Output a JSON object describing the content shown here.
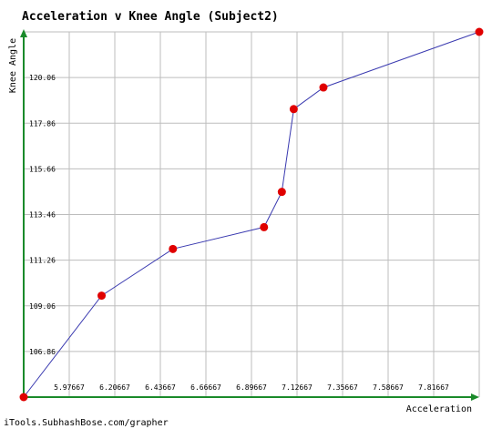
{
  "chart_data": {
    "type": "line",
    "title": "Acceleration v Knee Angle (Subject2)",
    "xlabel": "Acceleration",
    "ylabel": "Knee Angle",
    "xlim": [
      5.74667,
      8.04667
    ],
    "ylim": [
      104.66,
      122.26
    ],
    "x_ticks": [
      "5.97667",
      "6.20667",
      "6.43667",
      "6.66667",
      "6.89667",
      "7.12667",
      "7.35667",
      "7.58667",
      "7.81667"
    ],
    "y_ticks": [
      "106.86",
      "109.06",
      "111.26",
      "113.46",
      "115.66",
      "117.86",
      "120.06"
    ],
    "grid": true,
    "series": [
      {
        "x": [
          5.74667,
          6.14,
          6.5,
          6.96,
          7.05,
          7.11,
          7.26,
          8.04667
        ],
        "y": [
          104.66,
          109.55,
          111.8,
          112.85,
          114.55,
          118.54,
          119.58,
          122.26
        ]
      }
    ],
    "colors": {
      "line": "#3a3ab0",
      "marker": "#e00000",
      "axis": "#1a8a2a",
      "grid": "#bdbdbd"
    }
  },
  "credit": "iTools.SubhashBose.com/grapher"
}
